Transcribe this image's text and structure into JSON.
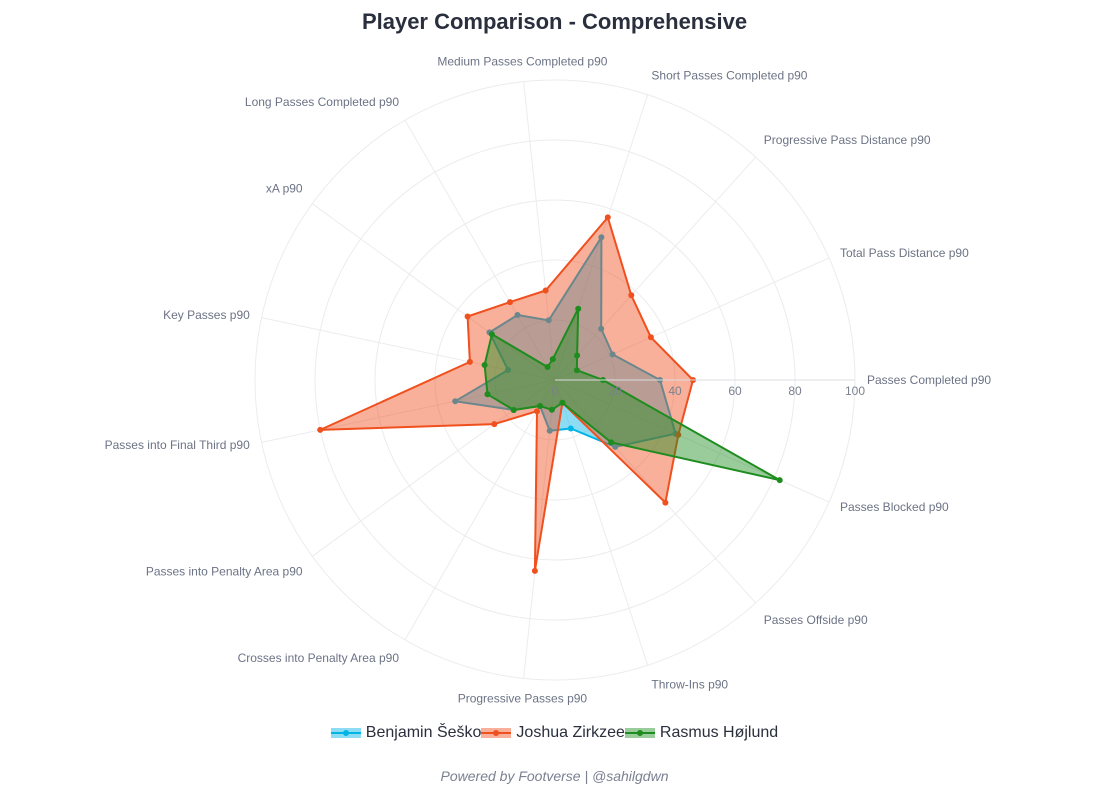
{
  "title": "Player Comparison - Comprehensive",
  "footer": "Powered by Footverse | @sahilgdwn",
  "chart_data": {
    "type": "radar",
    "title": "Player Comparison - Comprehensive",
    "axes": [
      "Passes Completed p90",
      "Total Pass Distance p90",
      "Progressive Pass Distance p90",
      "Short Passes Completed p90",
      "Medium Passes Completed p90",
      "Long Passes Completed p90",
      "xA p90",
      "Key Passes p90",
      "Passes into Final Third p90",
      "Passes into Penalty Area p90",
      "Crosses into Penalty Area p90",
      "Progressive Passes p90",
      "Throw-Ins p90",
      "Passes Offside p90",
      "Passes Blocked p90"
    ],
    "radial_range": [
      0,
      100
    ],
    "radial_ticks": [
      0,
      20,
      40,
      60,
      80,
      100
    ],
    "series": [
      {
        "name": "Benjamin Šeško",
        "color": "#00b4e6",
        "values": [
          35,
          21,
          23,
          50,
          20,
          25,
          27,
          16,
          34,
          17,
          10,
          17,
          17,
          30,
          44
        ]
      },
      {
        "name": "Joshua Zirkzee",
        "color": "#f0501e",
        "values": [
          46,
          35,
          38,
          57,
          30,
          30,
          36,
          29,
          80,
          25,
          12,
          64,
          8,
          55,
          45
        ]
      },
      {
        "name": "Rasmus Højlund",
        "color": "#1e8c1e",
        "values": [
          16,
          8,
          11,
          25,
          7,
          5,
          26,
          24,
          23,
          17,
          10,
          10,
          8,
          28,
          82
        ]
      }
    ]
  }
}
